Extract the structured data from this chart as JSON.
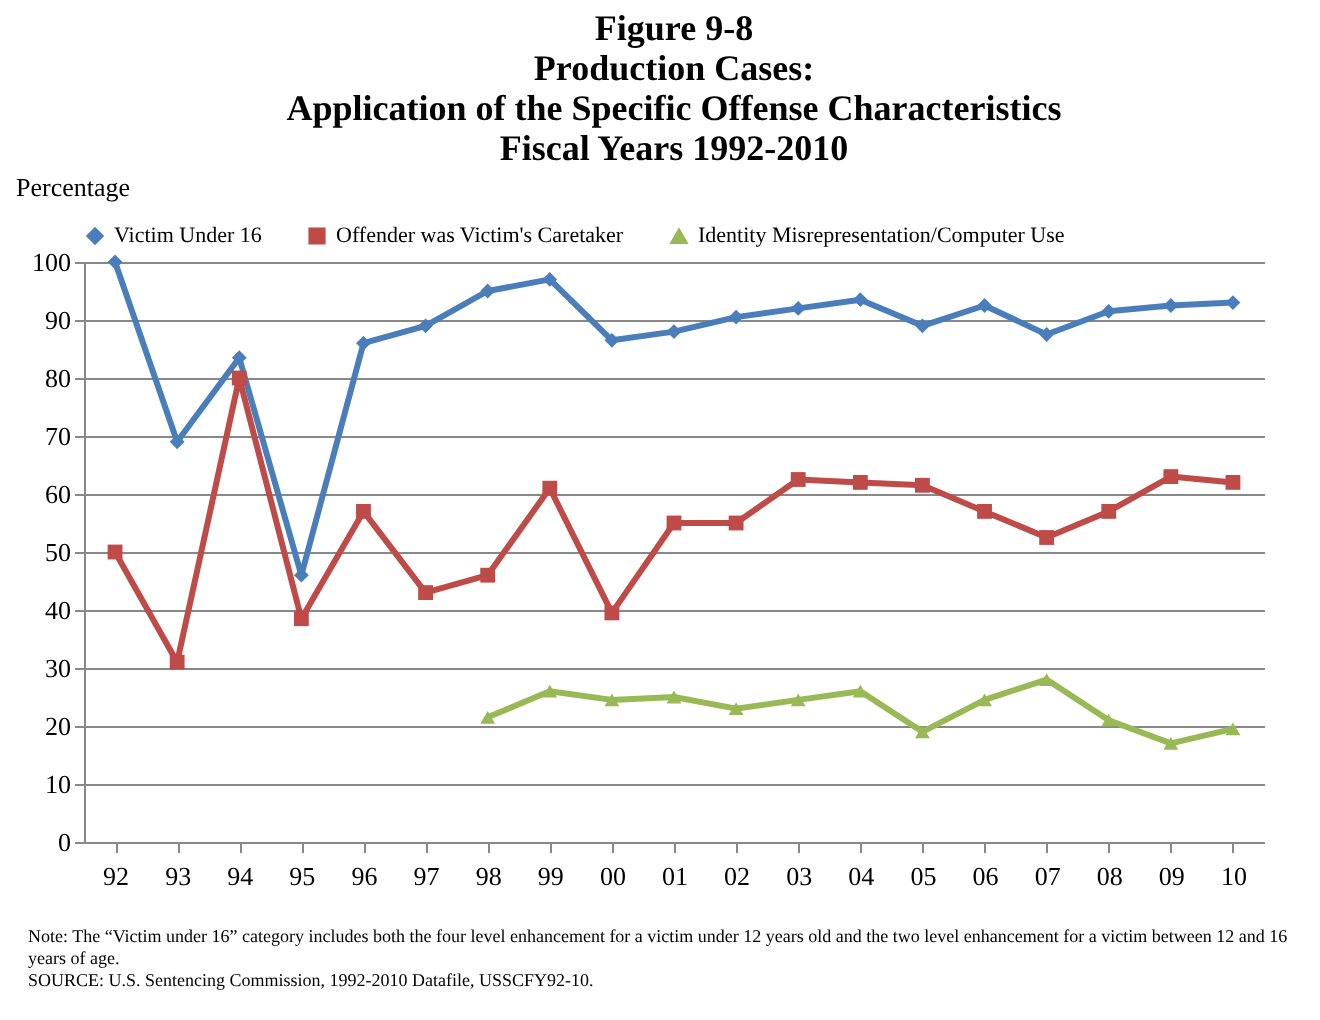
{
  "chart_data": {
    "type": "line",
    "title": "Figure 9-8\nProduction Cases:\nApplication of the Specific Offense Characteristics\nFiscal Years 1992-2010",
    "ylabel": "Percentage",
    "categories": [
      "92",
      "93",
      "94",
      "95",
      "96",
      "97",
      "98",
      "99",
      "00",
      "01",
      "02",
      "03",
      "04",
      "05",
      "06",
      "07",
      "08",
      "09",
      "10"
    ],
    "series": [
      {
        "name": "Victim Under 16",
        "color": "#4a7ebb",
        "marker": "diamond",
        "values": [
          100,
          69,
          83.5,
          46,
          86,
          89,
          95,
          97,
          86.5,
          88,
          90.5,
          92,
          93.5,
          89,
          92.5,
          87.5,
          91.5,
          92.5,
          93
        ]
      },
      {
        "name": "Offender was Victim's Caretaker",
        "color": "#be4b48",
        "marker": "square",
        "values": [
          50,
          31,
          80,
          38.5,
          57,
          43,
          46,
          61,
          39.5,
          55,
          55,
          62.5,
          62,
          61.5,
          57,
          52.5,
          57,
          63,
          62
        ]
      },
      {
        "name": "Identity Misrepresentation/Computer Use",
        "color": "#98b954",
        "marker": "triangle",
        "values": [
          null,
          null,
          null,
          null,
          null,
          null,
          21.5,
          26,
          24.5,
          25,
          23,
          24.5,
          26,
          19,
          24.5,
          28,
          21,
          17,
          19.5
        ]
      }
    ],
    "ylim": [
      0,
      100
    ],
    "yticks": [
      0,
      10,
      20,
      30,
      40,
      50,
      60,
      70,
      80,
      90,
      100
    ],
    "grid": "y",
    "legend": "top",
    "annotations": [
      "Note: The “Victim under 16” category includes both the four level enhancement for a victim under 12 years old and the two level enhancement for a victim between 12 and 16 years of age.",
      "SOURCE:  U.S. Sentencing Commission, 1992-2010 Datafile, USSCFY92-10."
    ]
  }
}
